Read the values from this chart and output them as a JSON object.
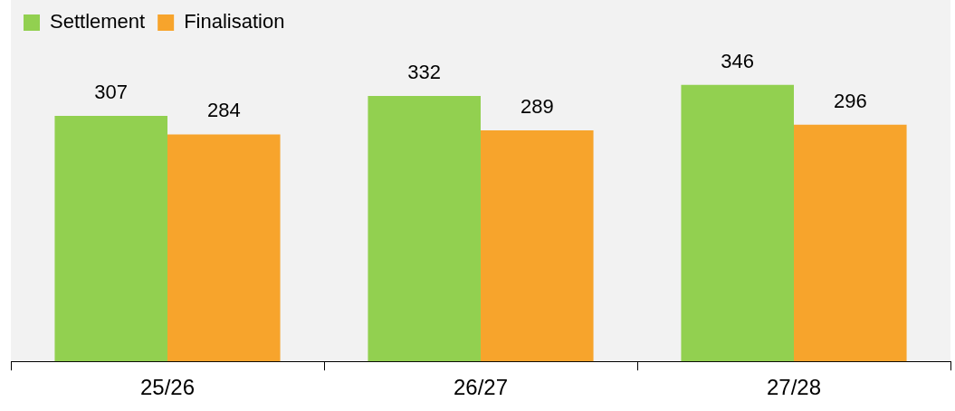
{
  "chart_data": {
    "type": "bar",
    "categories": [
      "25/26",
      "26/27",
      "27/28"
    ],
    "series": [
      {
        "name": "Settlement",
        "color": "#92d050",
        "values": [
          307,
          332,
          346
        ]
      },
      {
        "name": "Finalisation",
        "color": "#f7a42c",
        "values": [
          284,
          289,
          296
        ]
      }
    ],
    "data_labels": true,
    "legend": "top left",
    "grid": false
  }
}
